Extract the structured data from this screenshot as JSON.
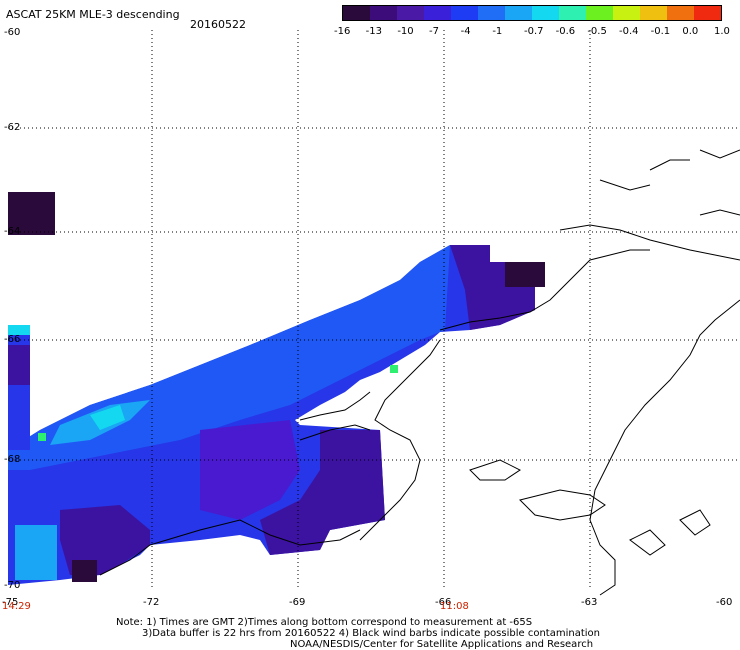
{
  "header": {
    "title": "ASCAT 25KM MLE-3 descending",
    "date": "20160522"
  },
  "colorbar": {
    "labels": [
      "-16",
      "-13",
      "-10",
      "-7",
      "-4",
      "-1",
      "-0.7",
      "-0.6",
      "-0.5",
      "-0.4",
      "-0.1",
      "0.0",
      "1.0"
    ],
    "colors": [
      "#2a0a3a",
      "#3c0d7a",
      "#4a1aa6",
      "#3a20d8",
      "#1f3cf5",
      "#1f6ef5",
      "#1aa6f5",
      "#14d8f0",
      "#2ef0b0",
      "#6cf020",
      "#c8f010",
      "#f0c010",
      "#f07010",
      "#f02a10"
    ]
  },
  "axes": {
    "latitude_labels": [
      "-60",
      "-62",
      "-64",
      "-66",
      "-68",
      "-70"
    ],
    "longitude_labels": [
      "-75",
      "-72",
      "-69",
      "-66",
      "-63",
      "-60"
    ]
  },
  "pass_times": [
    "14:29",
    "11:08"
  ],
  "notes": {
    "line1": "Note: 1) Times are GMT 2)Times along bottom correspond to measurement at -65S",
    "line2": "3)Data buffer is 22 hrs from 20160522 4) Black wind barbs indicate possible contamination",
    "line3": "NOAA/NESDIS/Center for Satellite Applications and Research"
  },
  "map_colors": {
    "dark": "#2a0a3a",
    "purple": "#3c12a0",
    "violet": "#4a1ad0",
    "blue": "#2636e8",
    "midblue": "#2058f5",
    "lightblue": "#1aa6f5",
    "cyan": "#14d8f0",
    "green": "#2ef070"
  }
}
